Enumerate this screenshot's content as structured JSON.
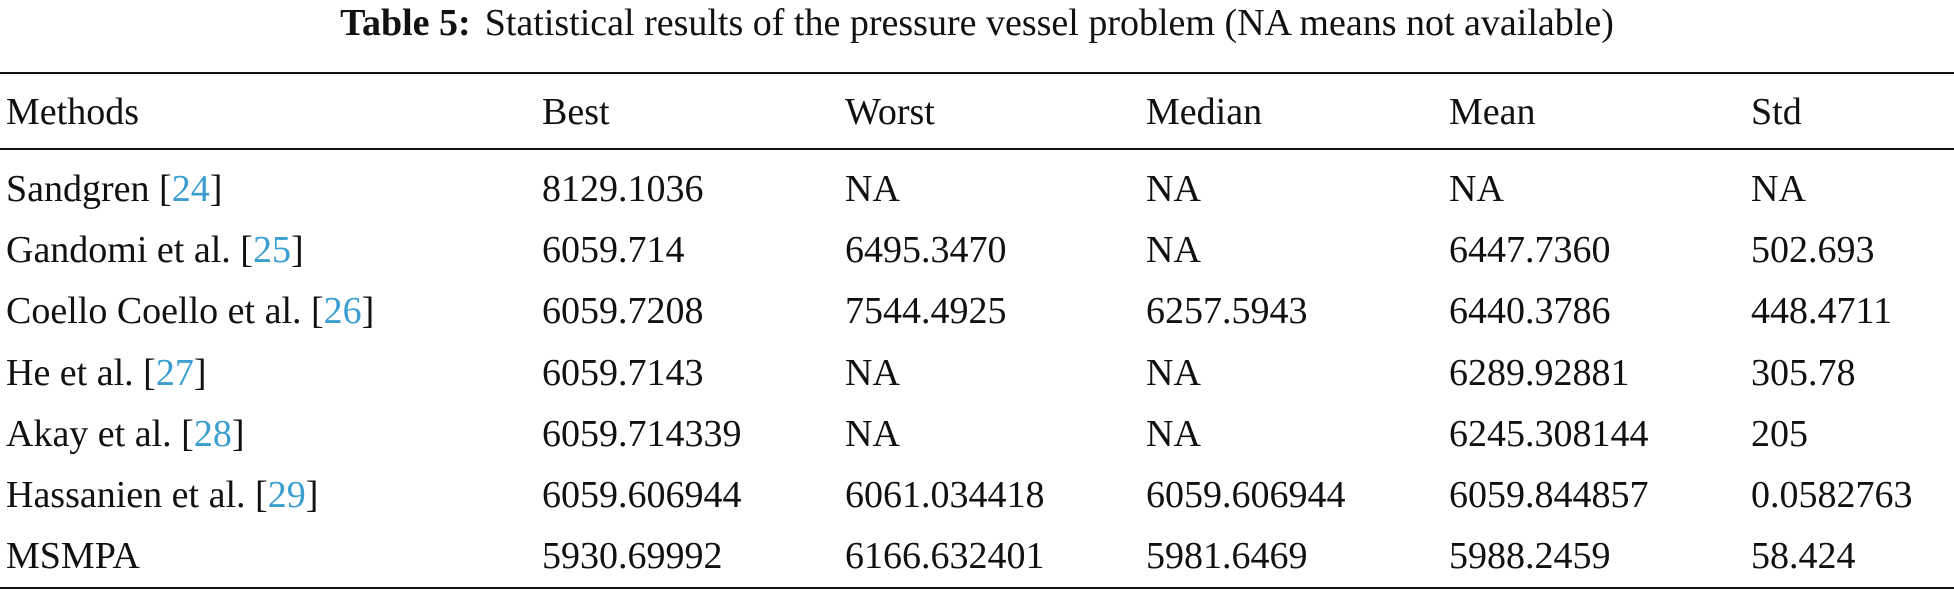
{
  "table": {
    "caption_label": "Table 5:",
    "caption": "Statistical results of the pressure vessel problem (NA means not available)",
    "header": [
      "Methods",
      "Best",
      "Worst",
      "Median",
      "Mean",
      "Std"
    ],
    "rows": [
      [
        [
          "Sandgren [",
          "24",
          "]"
        ],
        "8129.1036",
        "NA",
        "NA",
        "NA",
        "NA"
      ],
      [
        [
          "Gandomi et al. [",
          "25",
          "]"
        ],
        "6059.714",
        "6495.3470",
        "NA",
        "6447.7360",
        "502.693"
      ],
      [
        [
          "Coello Coello et al. [",
          "26",
          "]"
        ],
        "6059.7208",
        "7544.4925",
        "6257.5943",
        "6440.3786",
        "448.4711"
      ],
      [
        [
          "He et al. [",
          "27",
          "]"
        ],
        "6059.7143",
        "NA",
        "NA",
        "6289.92881",
        "305.78"
      ],
      [
        [
          "Akay et al. [",
          "28",
          "]"
        ],
        "6059.714339",
        "NA",
        "NA",
        "6245.308144",
        "205"
      ],
      [
        [
          "Hassanien et al. [",
          "29",
          "]"
        ],
        "6059.606944",
        "6061.034418",
        "6059.606944",
        "6059.844857",
        "0.0582763"
      ],
      [
        [
          "MSMPA"
        ],
        "5930.69992",
        "6166.632401",
        "5981.6469",
        "5988.2459",
        "58.424"
      ]
    ]
  }
}
